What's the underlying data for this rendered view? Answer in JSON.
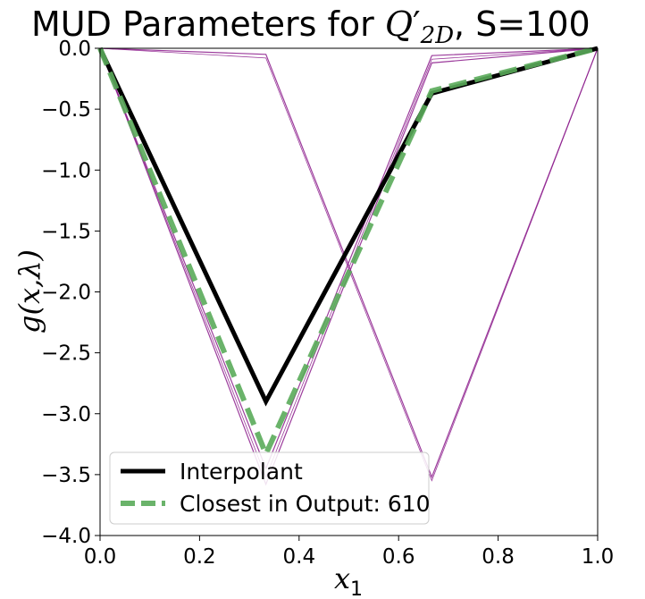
{
  "chart_data": {
    "type": "line",
    "title": "MUD Parameters for Q′2D, S=100",
    "title_parts": {
      "pre": "MUD Parameters for ",
      "sym": "Q",
      "prime": "′",
      "sub": "2D",
      "post": ", S=100"
    },
    "xlabel": "x1",
    "xlabel_parts": {
      "sym": "x",
      "sub": "1"
    },
    "ylabel": "g(x,λ)",
    "xlim": [
      0.0,
      1.0
    ],
    "ylim": [
      -4.0,
      0.0
    ],
    "xticks": [
      "0.0",
      "0.2",
      "0.4",
      "0.6",
      "0.8",
      "1.0"
    ],
    "yticks": [
      "0.0",
      "−0.5",
      "−1.0",
      "−1.5",
      "−2.0",
      "−2.5",
      "−3.0",
      "−3.5",
      "−4.0"
    ],
    "grid": false,
    "legend_placement": "lower-left",
    "background_series": {
      "x": [
        0.0,
        0.3333,
        0.6667,
        1.0
      ],
      "color": "#8b1a8b",
      "lines": [
        [
          0.0,
          -0.05,
          -3.52,
          0.0
        ],
        [
          0.0,
          -0.08,
          -3.55,
          0.0
        ],
        [
          0.0,
          -3.45,
          -0.06,
          0.0
        ],
        [
          0.0,
          -3.52,
          -0.09,
          0.0
        ],
        [
          0.0,
          -3.58,
          -0.12,
          0.0
        ]
      ]
    },
    "series": [
      {
        "name": "Interpolant",
        "x": [
          0.0,
          0.3333,
          0.6667,
          1.0
        ],
        "values": [
          0.0,
          -2.9,
          -0.37,
          0.0
        ],
        "color": "#000000",
        "style": "solid"
      },
      {
        "name": "Closest in Output: 610",
        "x": [
          0.0,
          0.3333,
          0.6667,
          1.0
        ],
        "values": [
          0.0,
          -3.33,
          -0.35,
          0.0
        ],
        "color": "#5aab5a",
        "style": "dashed"
      }
    ]
  }
}
